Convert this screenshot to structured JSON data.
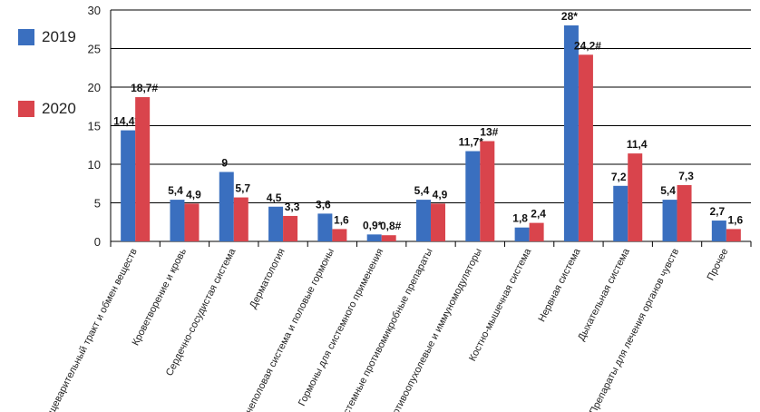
{
  "legend": {
    "items": [
      {
        "label": "2019",
        "color": "#3a6fbf"
      },
      {
        "label": "2020",
        "color": "#d9444c"
      }
    ]
  },
  "chart_data": {
    "type": "bar",
    "title": "",
    "xlabel": "",
    "ylabel": "",
    "ylim": [
      0,
      30
    ],
    "yticks": [
      0,
      5,
      10,
      15,
      20,
      25,
      30
    ],
    "grid": true,
    "legend_position": "left",
    "categories": [
      "Пищеварительный тракт и обмен веществ",
      "Кроветворение и кровь",
      "Сердечно-сосудистая система",
      "Дерматология",
      "Мочеполовая система и половые гормоны",
      "Гормоны для системного применения",
      "Системные противомикробные препараты",
      "Противоопухолевые и иммуномодуляторы",
      "Костно-мышечная система",
      "Нервная система",
      "Дыхательная система",
      "Препараты для лечения органов чувств",
      "Прочее"
    ],
    "series": [
      {
        "name": "2019",
        "color": "#3a6fbf",
        "values": [
          14.4,
          5.4,
          9,
          4.5,
          3.6,
          0.9,
          5.4,
          11.7,
          1.8,
          28,
          7.2,
          5.4,
          2.7
        ],
        "labels": [
          "14,4*",
          "5,4",
          "9",
          "4,5",
          "3,6",
          "0,9*",
          "5,4",
          "11,7*",
          "1,8",
          "28*",
          "7,2",
          "5,4",
          "2,7"
        ]
      },
      {
        "name": "2020",
        "color": "#d9444c",
        "values": [
          18.7,
          4.9,
          5.7,
          3.3,
          1.6,
          0.8,
          4.9,
          13,
          2.4,
          24.2,
          11.4,
          7.3,
          1.6
        ],
        "labels": [
          "18,7#",
          "4,9",
          "5,7",
          "3,3",
          "1,6",
          "0,8#",
          "4,9",
          "13#",
          "2,4",
          "24,2#",
          "11,4",
          "7,3",
          "1,6"
        ]
      }
    ]
  }
}
